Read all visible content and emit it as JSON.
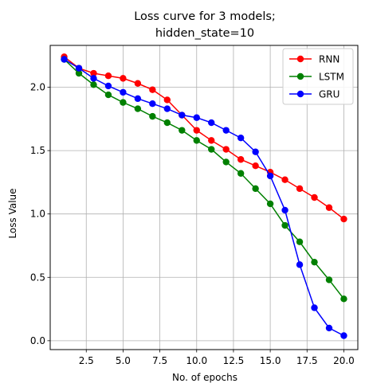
{
  "chart_data": {
    "type": "line",
    "title_lines": [
      "Loss curve for 3 models;",
      "hidden_state=10"
    ],
    "xlabel": "No. of epochs",
    "ylabel": "Loss Value",
    "xlim": [
      0.05,
      20.95
    ],
    "ylim": [
      -0.07,
      2.33
    ],
    "xticks": [
      2.5,
      5.0,
      7.5,
      10.0,
      12.5,
      15.0,
      17.5,
      20.0
    ],
    "xtick_labels": [
      "2.5",
      "5.0",
      "7.5",
      "10.0",
      "12.5",
      "15.0",
      "17.5",
      "20.0"
    ],
    "yticks": [
      0.0,
      0.5,
      1.0,
      1.5,
      2.0
    ],
    "ytick_labels": [
      "0.0",
      "0.5",
      "1.0",
      "1.5",
      "2.0"
    ],
    "grid": true,
    "legend_position": "top-right",
    "x": [
      1,
      2,
      3,
      4,
      5,
      6,
      7,
      8,
      9,
      10,
      11,
      12,
      13,
      14,
      15,
      16,
      17,
      18,
      19,
      20
    ],
    "series": [
      {
        "name": "RNN",
        "color": "#ff0000",
        "values": [
          2.24,
          2.15,
          2.11,
          2.09,
          2.07,
          2.03,
          1.98,
          1.9,
          1.78,
          1.66,
          1.58,
          1.51,
          1.43,
          1.38,
          1.33,
          1.27,
          1.2,
          1.13,
          1.05,
          0.96
        ]
      },
      {
        "name": "LSTM",
        "color": "#008000",
        "values": [
          2.22,
          2.11,
          2.02,
          1.94,
          1.88,
          1.83,
          1.77,
          1.72,
          1.66,
          1.58,
          1.51,
          1.41,
          1.32,
          1.2,
          1.08,
          0.91,
          0.78,
          0.62,
          0.48,
          0.33
        ]
      },
      {
        "name": "GRU",
        "color": "#0000ff",
        "values": [
          2.22,
          2.15,
          2.07,
          2.01,
          1.96,
          1.91,
          1.87,
          1.83,
          1.78,
          1.76,
          1.72,
          1.66,
          1.6,
          1.49,
          1.3,
          1.03,
          0.6,
          0.26,
          0.1,
          0.04
        ]
      }
    ]
  }
}
